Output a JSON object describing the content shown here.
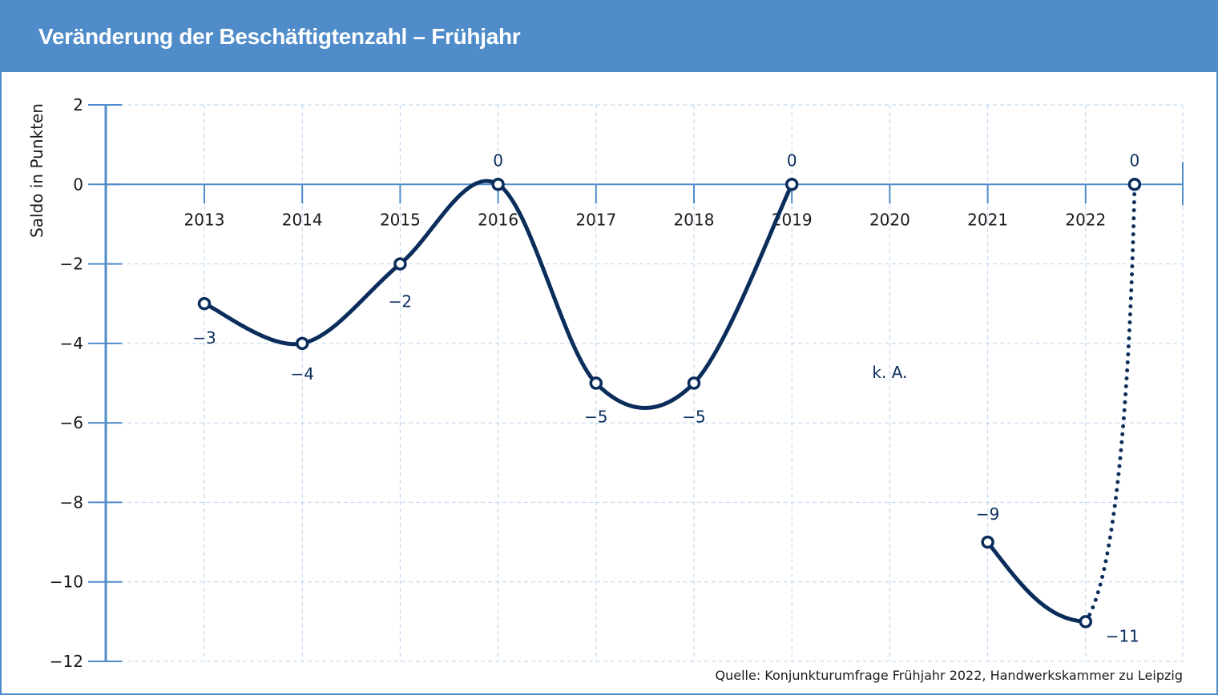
{
  "header": {
    "title": "Veränderung der Beschäftigtenzahl – Frühjahr"
  },
  "source": "Quelle: Konjunkturumfrage Frühjahr 2022, Handwerkskammer zu Leipzig",
  "colors": {
    "header": "#4f8cc9",
    "line": "#0b2d5c",
    "axis": "#4f8cc9",
    "grid": "#b9d3ee"
  },
  "chart_data": {
    "type": "line",
    "ylabel": "Saldo in Punkten",
    "ylim": [
      -12,
      2
    ],
    "yticks": [
      2,
      0,
      -2,
      -4,
      -6,
      -8,
      -10,
      -12
    ],
    "ytick_labels": [
      "2",
      "0",
      "−2",
      "−4",
      "−6",
      "−8",
      "−10",
      "−12"
    ],
    "categories": [
      "2013",
      "2014",
      "2015",
      "2016",
      "2017",
      "2018",
      "2019",
      "2020",
      "2021",
      "2022"
    ],
    "grid": true,
    "series": [
      {
        "points": [
          {
            "x": "2013",
            "y": -3,
            "label": "−3"
          },
          {
            "x": "2014",
            "y": -4,
            "label": "−4"
          },
          {
            "x": "2015",
            "y": -2,
            "label": "−2"
          },
          {
            "x": "2016",
            "y": 0,
            "label": "0"
          },
          {
            "x": "2017",
            "y": -5,
            "label": "−5"
          },
          {
            "x": "2018",
            "y": -5,
            "label": "−5"
          },
          {
            "x": "2019",
            "y": 0,
            "label": "0"
          }
        ]
      },
      {
        "points": [
          {
            "x": "2021",
            "y": -9,
            "label": "−9"
          },
          {
            "x": "2022",
            "y": -11,
            "label": "−11"
          }
        ]
      },
      {
        "points": [
          {
            "x": 2022.5,
            "y": 0,
            "label": "0"
          }
        ]
      }
    ],
    "annotations": [
      {
        "x": "2020",
        "y": -4.75,
        "text": "k. A."
      }
    ]
  }
}
